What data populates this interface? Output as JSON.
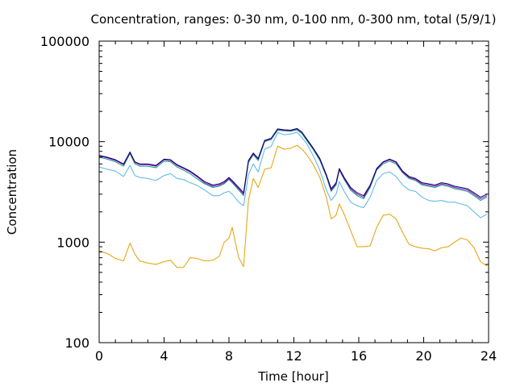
{
  "chart_data": {
    "type": "line",
    "title": "Concentration, ranges: 0-30 nm, 0-100 nm, 0-300 nm, total (5/9/1)",
    "xlabel": "Time [hour]",
    "ylabel": "Concentration",
    "xlim": [
      0,
      24
    ],
    "ylim": [
      100,
      100000
    ],
    "yscale": "log",
    "grid": false,
    "x_ticks": [
      0,
      4,
      8,
      12,
      16,
      20,
      24
    ],
    "y_ticks": [
      100,
      1000,
      10000,
      100000
    ],
    "x_tick_labels": [
      "0",
      "4",
      "8",
      "12",
      "16",
      "20",
      "24"
    ],
    "y_tick_labels": [
      "100",
      "1000",
      "10000",
      "100000"
    ],
    "series": [
      {
        "color": "#e69f00",
        "x": [
          0,
          0.5,
          1,
          1.5,
          1.9,
          2.2,
          2.5,
          3,
          3.5,
          4,
          4.4,
          4.8,
          5.2,
          5.6,
          6,
          6.5,
          7,
          7.4,
          7.7,
          8,
          8.2,
          8.6,
          8.9,
          9.2,
          9.5,
          9.8,
          10.2,
          10.6,
          11,
          11.4,
          11.8,
          12.2,
          12.5,
          12.8,
          13.2,
          13.6,
          14,
          14.3,
          14.6,
          14.8,
          15.1,
          15.5,
          15.9,
          16.3,
          16.7,
          17.1,
          17.5,
          17.9,
          18.3,
          18.7,
          19.1,
          19.5,
          19.9,
          20.3,
          20.7,
          21.1,
          21.5,
          21.9,
          22.3,
          22.7,
          23.1,
          23.5,
          23.9
        ],
        "values": [
          820,
          770,
          690,
          650,
          980,
          760,
          650,
          620,
          600,
          640,
          660,
          560,
          560,
          700,
          690,
          650,
          660,
          720,
          990,
          1100,
          1400,
          700,
          570,
          2600,
          4300,
          3500,
          5300,
          5500,
          9000,
          8400,
          8600,
          9200,
          8400,
          7400,
          5900,
          4400,
          2800,
          1700,
          1850,
          2400,
          1900,
          1300,
          900,
          900,
          920,
          1400,
          1850,
          1900,
          1700,
          1250,
          950,
          900,
          870,
          860,
          820,
          880,
          900,
          1000,
          1100,
          1050,
          880,
          640,
          580
        ]
      },
      {
        "color": "#56b4e9",
        "x": [
          0,
          0.5,
          1,
          1.5,
          1.9,
          2.2,
          2.5,
          3,
          3.5,
          4,
          4.4,
          4.8,
          5.2,
          5.6,
          6,
          6.5,
          7,
          7.4,
          7.7,
          8,
          8.2,
          8.6,
          8.9,
          9.2,
          9.5,
          9.8,
          10.2,
          10.6,
          11,
          11.4,
          11.8,
          12.2,
          12.5,
          12.8,
          13.2,
          13.6,
          14,
          14.3,
          14.6,
          14.8,
          15.1,
          15.5,
          15.9,
          16.3,
          16.7,
          17.1,
          17.5,
          17.9,
          18.3,
          18.7,
          19.1,
          19.5,
          19.9,
          20.3,
          20.7,
          21.1,
          21.5,
          21.9,
          22.3,
          22.7,
          23.1,
          23.5,
          23.9
        ],
        "values": [
          5600,
          5300,
          5100,
          4500,
          5800,
          4600,
          4400,
          4300,
          4100,
          4600,
          4800,
          4300,
          4200,
          3900,
          3700,
          3300,
          2900,
          2900,
          3100,
          3200,
          3000,
          2500,
          2300,
          4700,
          6000,
          5000,
          8400,
          9000,
          12300,
          11700,
          11900,
          12400,
          11000,
          9500,
          7200,
          5200,
          3300,
          2600,
          3000,
          4000,
          3200,
          2500,
          2300,
          2200,
          2800,
          4100,
          4800,
          5000,
          4500,
          3700,
          3300,
          3200,
          2800,
          2600,
          2550,
          2600,
          2500,
          2500,
          2400,
          2300,
          2000,
          1750,
          1900
        ]
      },
      {
        "color": "#009e73",
        "x": [
          0,
          0.5,
          1,
          1.5,
          1.9,
          2.2,
          2.5,
          3,
          3.5,
          4,
          4.4,
          4.8,
          5.2,
          5.6,
          6,
          6.5,
          7,
          7.4,
          7.7,
          8,
          8.2,
          8.6,
          8.9,
          9.2,
          9.5,
          9.8,
          10.2,
          10.6,
          11,
          11.4,
          11.8,
          12.2,
          12.5,
          12.8,
          13.2,
          13.6,
          14,
          14.3,
          14.6,
          14.8,
          15.1,
          15.5,
          15.9,
          16.3,
          16.7,
          17.1,
          17.5,
          17.9,
          18.3,
          18.7,
          19.1,
          19.5,
          19.9,
          20.3,
          20.7,
          21.1,
          21.5,
          21.9,
          22.3,
          22.7,
          23.1,
          23.5,
          23.9
        ],
        "values": [
          7000,
          6700,
          6300,
          5700,
          7600,
          6000,
          5700,
          5700,
          5500,
          6400,
          6300,
          5600,
          5200,
          4800,
          4300,
          3800,
          3500,
          3600,
          3800,
          4200,
          3900,
          3300,
          2900,
          6200,
          7400,
          6500,
          10000,
          10500,
          13000,
          12800,
          12700,
          13100,
          12000,
          10200,
          8300,
          6500,
          4500,
          3200,
          3700,
          5200,
          4200,
          3300,
          2900,
          2700,
          3500,
          5200,
          6000,
          6400,
          6000,
          4900,
          4300,
          4100,
          3700,
          3600,
          3500,
          3700,
          3600,
          3400,
          3300,
          3200,
          2900,
          2600,
          2800
        ]
      },
      {
        "color": "#9400d3",
        "x": [
          0,
          0.5,
          1,
          1.5,
          1.9,
          2.2,
          2.5,
          3,
          3.5,
          4,
          4.4,
          4.8,
          5.2,
          5.6,
          6,
          6.5,
          7,
          7.4,
          7.7,
          8,
          8.2,
          8.6,
          8.9,
          9.2,
          9.5,
          9.8,
          10.2,
          10.6,
          11,
          11.4,
          11.8,
          12.2,
          12.5,
          12.8,
          13.2,
          13.6,
          14,
          14.3,
          14.6,
          14.8,
          15.1,
          15.5,
          15.9,
          16.3,
          16.7,
          17.1,
          17.5,
          17.9,
          18.3,
          18.7,
          19.1,
          19.5,
          19.9,
          20.3,
          20.7,
          21.1,
          21.5,
          21.9,
          22.3,
          22.7,
          23.1,
          23.5,
          23.9
        ],
        "values": [
          7200,
          6900,
          6500,
          5900,
          7800,
          6200,
          5900,
          5900,
          5700,
          6600,
          6500,
          5800,
          5400,
          5000,
          4500,
          3900,
          3600,
          3700,
          3900,
          4300,
          4000,
          3400,
          3000,
          6400,
          7600,
          6700,
          10200,
          10700,
          13300,
          13000,
          12900,
          13400,
          12300,
          10500,
          8500,
          6700,
          4600,
          3300,
          3800,
          5300,
          4300,
          3400,
          3000,
          2800,
          3600,
          5300,
          6200,
          6600,
          6200,
          5000,
          4400,
          4200,
          3800,
          3700,
          3600,
          3800,
          3700,
          3500,
          3400,
          3300,
          3000,
          2700,
          2900
        ]
      },
      {
        "color": "#000060",
        "x": [
          0,
          0.5,
          1,
          1.5,
          1.9,
          2.2,
          2.5,
          3,
          3.5,
          4,
          4.4,
          4.8,
          5.2,
          5.6,
          6,
          6.5,
          7,
          7.4,
          7.7,
          8,
          8.2,
          8.6,
          8.9,
          9.2,
          9.5,
          9.8,
          10.2,
          10.6,
          11,
          11.4,
          11.8,
          12.2,
          12.5,
          12.8,
          13.2,
          13.6,
          14,
          14.3,
          14.6,
          14.8,
          15.1,
          15.5,
          15.9,
          16.3,
          16.7,
          17.1,
          17.5,
          17.9,
          18.3,
          18.7,
          19.1,
          19.5,
          19.9,
          20.3,
          20.7,
          21.1,
          21.5,
          21.9,
          22.3,
          22.7,
          23.1,
          23.5,
          23.9
        ],
        "values": [
          7300,
          7000,
          6600,
          6000,
          7900,
          6300,
          6000,
          6000,
          5800,
          6700,
          6600,
          5900,
          5500,
          5100,
          4600,
          4000,
          3700,
          3800,
          4000,
          4400,
          4100,
          3500,
          3100,
          6500,
          7700,
          6800,
          10300,
          10800,
          13400,
          13100,
          13000,
          13500,
          12400,
          10600,
          8600,
          6800,
          4700,
          3400,
          3900,
          5400,
          4400,
          3500,
          3100,
          2900,
          3700,
          5400,
          6300,
          6700,
          6300,
          5100,
          4500,
          4300,
          3900,
          3800,
          3700,
          3900,
          3800,
          3600,
          3500,
          3400,
          3100,
          2800,
          3000
        ]
      }
    ]
  }
}
